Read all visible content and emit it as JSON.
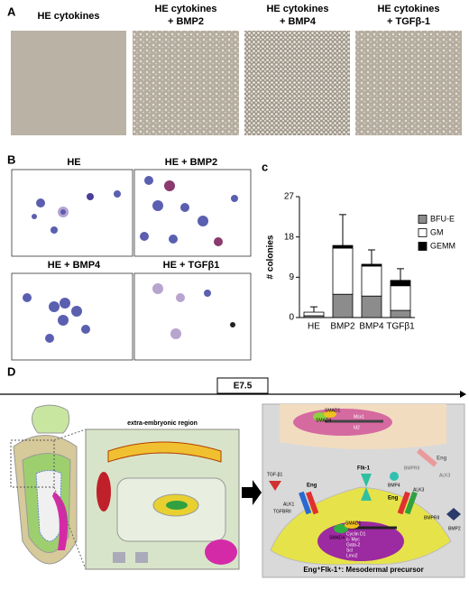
{
  "panel_a": {
    "label": "A",
    "titles": [
      [
        "HE cytokines"
      ],
      [
        "HE cytokines",
        "+ BMP2"
      ],
      [
        "HE cytokines",
        "+ BMP4"
      ],
      [
        "HE cytokines",
        "+ TGFβ-1"
      ]
    ]
  },
  "panel_b": {
    "label": "B",
    "titles": [
      "HE",
      "HE + BMP2",
      "HE + BMP4",
      "HE + TGFβ1"
    ]
  },
  "chart_data": {
    "type": "bar",
    "label": "c",
    "stacked": true,
    "ylabel": "# colonies",
    "categories": [
      "HE",
      "BMP2",
      "BMP4",
      "TGFβ1"
    ],
    "series": [
      {
        "name": "BFU-E",
        "color": "#8c8c8c",
        "values": [
          0.4,
          5.2,
          4.8,
          1.6
        ]
      },
      {
        "name": "GM",
        "color": "#ffffff",
        "values": [
          0.8,
          10.3,
          6.7,
          5.5
        ]
      },
      {
        "name": "GEMM",
        "color": "#000000",
        "values": [
          0,
          0.6,
          0.4,
          1.2
        ]
      }
    ],
    "errors": [
      1.2,
      6.9,
      3.2,
      2.6
    ],
    "ylim": [
      0,
      27
    ],
    "yticks": [
      0,
      9,
      18,
      27
    ]
  },
  "panel_d": {
    "label": "D",
    "timepoint": "E7.5",
    "region_label": "extra-embryonic region",
    "labels": [
      "SMAD4",
      "SMAD1",
      "Msx1",
      "Id2",
      "Eng",
      "ALK3",
      "BMPRII",
      "BMP4",
      "Flk-1",
      "TGF-β1",
      "ALK1",
      "TGFBRII",
      "Eng",
      "Eng",
      "ALK3",
      "BMPRII",
      "BMP2",
      "SMAD4",
      "SMAD1",
      "Cyclin D1",
      "c- Myc",
      "Gata-2",
      "Scl",
      "Lmo2"
    ],
    "caption": "Eng⁺Flk-1⁺: Mesodermal precursor"
  }
}
